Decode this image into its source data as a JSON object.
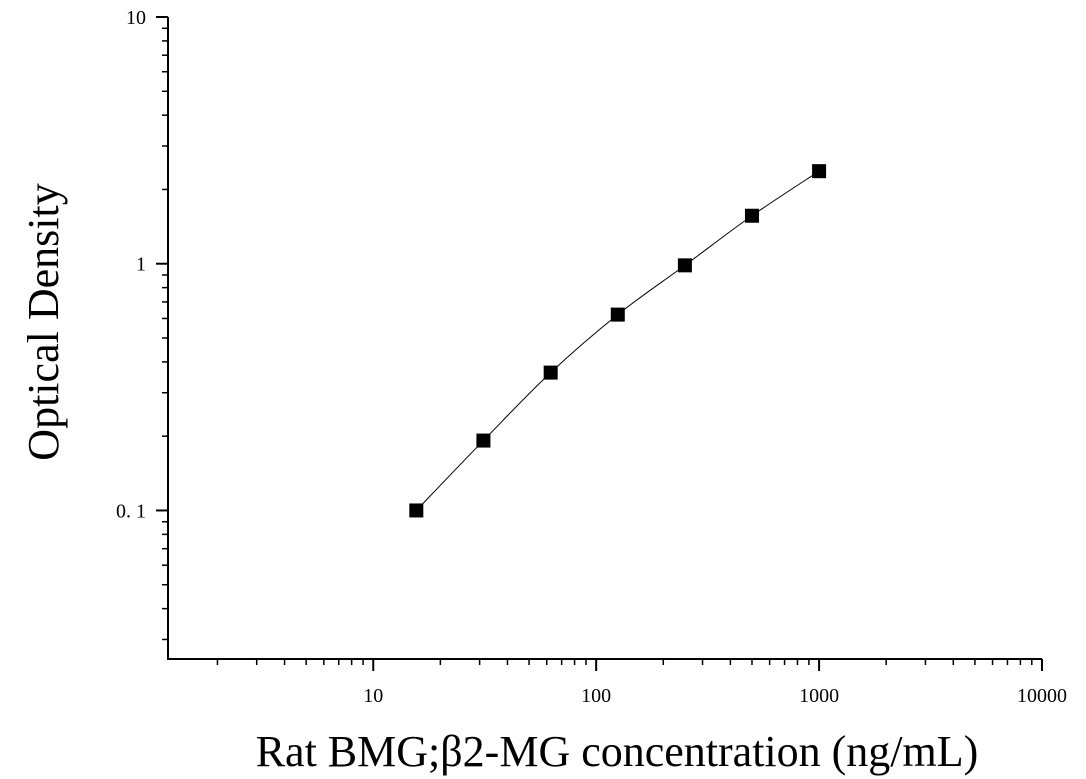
{
  "chart_data": {
    "type": "scatter",
    "title": "",
    "xlabel": "Rat BMG;β2-MG concentration (ng/mL)",
    "ylabel": "Optical Density",
    "xscale": "log",
    "yscale": "log",
    "xlim": [
      1.2,
      10000
    ],
    "ylim": [
      0.025,
      10
    ],
    "xticks": [
      {
        "value": 10,
        "label": "10"
      },
      {
        "value": 100,
        "label": "100"
      },
      {
        "value": 1000,
        "label": "1000"
      },
      {
        "value": 10000,
        "label": "10000"
      }
    ],
    "yticks": [
      {
        "value": 0.1,
        "label": "0. 1"
      },
      {
        "value": 1,
        "label": "1"
      },
      {
        "value": 10,
        "label": "10"
      }
    ],
    "grid": false,
    "legend": "none",
    "marker": "square",
    "series": [
      {
        "x": [
          15.6,
          31.2,
          62.5,
          125,
          250,
          500,
          1000
        ],
        "y": [
          0.1,
          0.192,
          0.362,
          0.622,
          0.985,
          1.565,
          2.372
        ],
        "fit_curve": true
      }
    ],
    "colors": {
      "marker": "#000000",
      "curve": "#000000",
      "axis": "#000000"
    }
  }
}
